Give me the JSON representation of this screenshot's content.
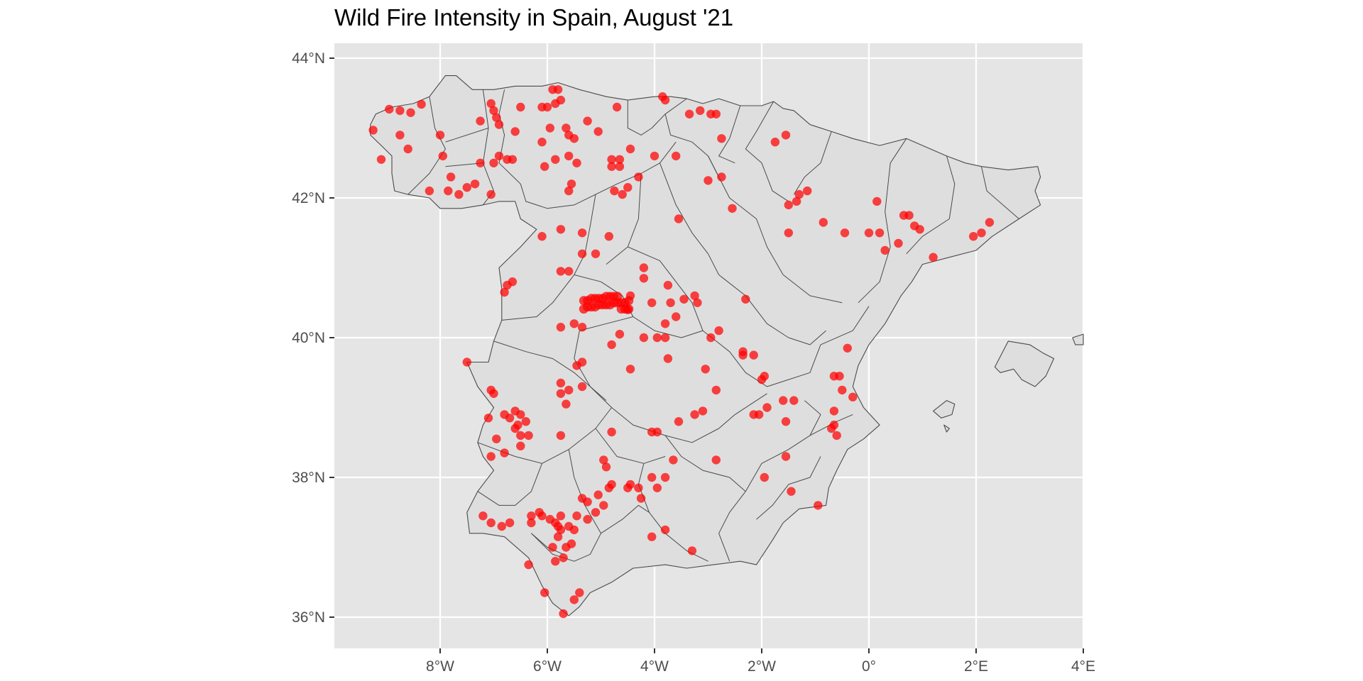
{
  "title": "Wild Fire Intensity in Spain, August '21",
  "map": {
    "x_ticks": [
      {
        "lon": -8,
        "label": "8°W"
      },
      {
        "lon": -6,
        "label": "6°W"
      },
      {
        "lon": -4,
        "label": "4°W"
      },
      {
        "lon": -2,
        "label": "2°W"
      },
      {
        "lon": 0,
        "label": "0°"
      },
      {
        "lon": 2,
        "label": "2°E"
      },
      {
        "lon": 4,
        "label": "4°E"
      }
    ],
    "y_ticks": [
      {
        "lat": 44,
        "label": "44°N"
      },
      {
        "lat": 42,
        "label": "42°N"
      },
      {
        "lat": 40,
        "label": "40°N"
      },
      {
        "lat": 38,
        "label": "38°N"
      },
      {
        "lat": 36,
        "label": "36°N"
      }
    ],
    "lon_range": [
      -10,
      4
    ],
    "lat_range": [
      35.6,
      44.25
    ],
    "panel_color": "#e5e5e5",
    "land_color": "#dedede",
    "border_color": "#4a4a4a",
    "point_color": "#ff0000",
    "fires": [
      [
        -9.25,
        42.97
      ],
      [
        -8.95,
        43.27
      ],
      [
        -8.75,
        43.25
      ],
      [
        -8.55,
        43.22
      ],
      [
        -8.35,
        43.34
      ],
      [
        -9.1,
        42.55
      ],
      [
        -8.75,
        42.9
      ],
      [
        -8.6,
        42.7
      ],
      [
        -8.0,
        42.9
      ],
      [
        -7.95,
        42.6
      ],
      [
        -8.2,
        42.1
      ],
      [
        -7.85,
        42.1
      ],
      [
        -7.65,
        42.05
      ],
      [
        -7.8,
        42.3
      ],
      [
        -7.5,
        42.15
      ],
      [
        -7.35,
        42.2
      ],
      [
        -7.25,
        42.5
      ],
      [
        -7.0,
        42.5
      ],
      [
        -6.9,
        42.6
      ],
      [
        -6.75,
        42.55
      ],
      [
        -6.65,
        42.55
      ],
      [
        -7.05,
        42.05
      ],
      [
        -7.25,
        43.1
      ],
      [
        -7.05,
        43.35
      ],
      [
        -7.0,
        43.25
      ],
      [
        -6.95,
        43.15
      ],
      [
        -6.9,
        43.05
      ],
      [
        -6.6,
        42.95
      ],
      [
        -6.5,
        43.3
      ],
      [
        -6.1,
        43.3
      ],
      [
        -6.0,
        43.3
      ],
      [
        -5.9,
        43.55
      ],
      [
        -5.8,
        43.55
      ],
      [
        -5.75,
        43.4
      ],
      [
        -5.85,
        43.35
      ],
      [
        -5.95,
        43.0
      ],
      [
        -5.65,
        43.0
      ],
      [
        -5.6,
        42.9
      ],
      [
        -5.5,
        42.85
      ],
      [
        -5.25,
        43.1
      ],
      [
        -5.05,
        42.95
      ],
      [
        -6.1,
        42.8
      ],
      [
        -6.05,
        42.45
      ],
      [
        -5.85,
        42.55
      ],
      [
        -5.6,
        42.6
      ],
      [
        -5.45,
        42.5
      ],
      [
        -5.55,
        42.2
      ],
      [
        -5.6,
        42.1
      ],
      [
        -4.8,
        42.55
      ],
      [
        -4.65,
        42.55
      ],
      [
        -4.8,
        42.45
      ],
      [
        -4.65,
        42.45
      ],
      [
        -4.6,
        42.05
      ],
      [
        -4.5,
        42.15
      ],
      [
        -4.45,
        42.7
      ],
      [
        -4.3,
        42.3
      ],
      [
        -4.75,
        42.1
      ],
      [
        -4.0,
        42.6
      ],
      [
        -3.85,
        43.45
      ],
      [
        -3.8,
        43.4
      ],
      [
        -3.6,
        42.6
      ],
      [
        -3.35,
        43.2
      ],
      [
        -3.15,
        43.25
      ],
      [
        -2.95,
        43.2
      ],
      [
        -2.85,
        43.2
      ],
      [
        -2.75,
        42.85
      ],
      [
        -3.0,
        42.25
      ],
      [
        -2.75,
        42.3
      ],
      [
        -4.7,
        43.3
      ],
      [
        -4.85,
        41.45
      ],
      [
        -3.55,
        41.7
      ],
      [
        -2.55,
        41.85
      ],
      [
        -1.75,
        42.8
      ],
      [
        -1.55,
        42.9
      ],
      [
        -1.5,
        41.9
      ],
      [
        -1.35,
        41.95
      ],
      [
        -1.3,
        42.05
      ],
      [
        -1.15,
        42.1
      ],
      [
        -1.5,
        41.5
      ],
      [
        -0.85,
        41.65
      ],
      [
        -0.45,
        41.5
      ],
      [
        0.15,
        41.95
      ],
      [
        0.0,
        41.5
      ],
      [
        0.2,
        41.5
      ],
      [
        0.3,
        41.25
      ],
      [
        0.55,
        41.35
      ],
      [
        0.65,
        41.75
      ],
      [
        0.75,
        41.75
      ],
      [
        0.85,
        41.6
      ],
      [
        0.95,
        41.55
      ],
      [
        1.2,
        41.15
      ],
      [
        1.95,
        41.45
      ],
      [
        2.1,
        41.5
      ],
      [
        2.25,
        41.65
      ],
      [
        -6.1,
        41.45
      ],
      [
        -5.75,
        41.55
      ],
      [
        -5.35,
        41.5
      ],
      [
        -5.35,
        41.2
      ],
      [
        -5.1,
        41.2
      ],
      [
        -6.65,
        40.8
      ],
      [
        -6.75,
        40.75
      ],
      [
        -6.8,
        40.65
      ],
      [
        -5.75,
        40.95
      ],
      [
        -5.6,
        40.95
      ],
      [
        -4.2,
        41.0
      ],
      [
        -4.2,
        40.85
      ],
      [
        -4.5,
        40.4
      ],
      [
        -4.45,
        40.6
      ],
      [
        -4.05,
        40.5
      ],
      [
        -3.75,
        40.75
      ],
      [
        -3.7,
        40.5
      ],
      [
        -3.6,
        40.3
      ],
      [
        -3.8,
        40.2
      ],
      [
        -3.45,
        40.55
      ],
      [
        -3.25,
        40.6
      ],
      [
        -3.2,
        40.5
      ],
      [
        -2.95,
        40.0
      ],
      [
        -2.8,
        40.1
      ],
      [
        -2.3,
        40.55
      ],
      [
        -5.75,
        40.15
      ],
      [
        -5.5,
        40.2
      ],
      [
        -5.35,
        40.15
      ],
      [
        -5.45,
        39.6
      ],
      [
        -5.35,
        39.65
      ],
      [
        -4.8,
        39.9
      ],
      [
        -4.65,
        40.05
      ],
      [
        -4.45,
        39.55
      ],
      [
        -4.2,
        40.0
      ],
      [
        -3.95,
        40.0
      ],
      [
        -3.8,
        40.0
      ],
      [
        -3.75,
        39.7
      ],
      [
        -3.05,
        39.55
      ],
      [
        -2.85,
        39.25
      ],
      [
        -2.35,
        39.8
      ],
      [
        -2.15,
        39.75
      ],
      [
        -2.0,
        39.4
      ],
      [
        -1.95,
        39.45
      ],
      [
        -1.6,
        39.1
      ],
      [
        -1.4,
        39.1
      ],
      [
        -0.65,
        39.45
      ],
      [
        -0.55,
        39.45
      ],
      [
        -0.4,
        39.85
      ],
      [
        -0.5,
        39.25
      ],
      [
        -0.3,
        39.15
      ],
      [
        -0.65,
        38.95
      ],
      [
        -0.65,
        38.75
      ],
      [
        -0.7,
        38.7
      ],
      [
        -0.6,
        38.6
      ],
      [
        -7.5,
        39.65
      ],
      [
        -7.05,
        39.25
      ],
      [
        -7.0,
        39.2
      ],
      [
        -6.8,
        38.9
      ],
      [
        -6.6,
        38.95
      ],
      [
        -6.5,
        38.9
      ],
      [
        -6.7,
        38.85
      ],
      [
        -6.55,
        38.75
      ],
      [
        -6.4,
        38.8
      ],
      [
        -6.6,
        38.7
      ],
      [
        -6.5,
        38.6
      ],
      [
        -6.35,
        38.6
      ],
      [
        -6.5,
        38.45
      ],
      [
        -7.1,
        38.85
      ],
      [
        -6.95,
        38.55
      ],
      [
        -7.05,
        38.3
      ],
      [
        -6.8,
        38.35
      ],
      [
        -5.75,
        39.35
      ],
      [
        -5.75,
        39.2
      ],
      [
        -5.6,
        39.25
      ],
      [
        -5.65,
        39.05
      ],
      [
        -5.75,
        38.6
      ],
      [
        -5.35,
        39.3
      ],
      [
        -4.8,
        38.65
      ],
      [
        -4.05,
        38.65
      ],
      [
        -3.95,
        38.65
      ],
      [
        -3.55,
        38.8
      ],
      [
        -3.25,
        38.9
      ],
      [
        -3.1,
        38.95
      ],
      [
        -2.15,
        38.9
      ],
      [
        -2.05,
        38.9
      ],
      [
        -1.9,
        39.0
      ],
      [
        -1.55,
        38.8
      ],
      [
        -1.55,
        38.3
      ],
      [
        -1.45,
        37.8
      ],
      [
        -1.95,
        38.0
      ],
      [
        -0.95,
        37.6
      ],
      [
        -2.85,
        38.25
      ],
      [
        -3.65,
        38.25
      ],
      [
        -3.8,
        38.0
      ],
      [
        -3.95,
        37.85
      ],
      [
        -4.05,
        38.0
      ],
      [
        -4.25,
        37.7
      ],
      [
        -4.3,
        37.85
      ],
      [
        -4.45,
        37.9
      ],
      [
        -4.5,
        37.85
      ],
      [
        -4.8,
        37.9
      ],
      [
        -4.85,
        37.85
      ],
      [
        -4.95,
        37.6
      ],
      [
        -5.05,
        37.75
      ],
      [
        -5.25,
        37.65
      ],
      [
        -5.1,
        37.5
      ],
      [
        -5.25,
        37.4
      ],
      [
        -5.35,
        37.7
      ],
      [
        -4.95,
        38.25
      ],
      [
        -4.9,
        38.15
      ],
      [
        -6.15,
        37.5
      ],
      [
        -6.1,
        37.45
      ],
      [
        -5.95,
        37.4
      ],
      [
        -5.85,
        37.35
      ],
      [
        -5.75,
        37.25
      ],
      [
        -5.75,
        37.45
      ],
      [
        -5.6,
        37.3
      ],
      [
        -5.5,
        37.25
      ],
      [
        -5.45,
        37.45
      ],
      [
        -5.55,
        37.05
      ],
      [
        -5.65,
        37.0
      ],
      [
        -5.8,
        37.15
      ],
      [
        -5.8,
        37.3
      ],
      [
        -5.9,
        37.0
      ],
      [
        -5.85,
        36.8
      ],
      [
        -5.7,
        36.85
      ],
      [
        -6.3,
        37.35
      ],
      [
        -6.3,
        37.45
      ],
      [
        -6.35,
        36.75
      ],
      [
        -6.05,
        36.35
      ],
      [
        -5.7,
        36.05
      ],
      [
        -5.5,
        36.25
      ],
      [
        -5.4,
        36.35
      ],
      [
        -7.05,
        37.35
      ],
      [
        -7.2,
        37.45
      ],
      [
        -6.85,
        37.3
      ],
      [
        -6.7,
        37.35
      ],
      [
        -4.05,
        37.15
      ],
      [
        -3.8,
        37.25
      ],
      [
        -3.3,
        36.95
      ],
      [
        -2.35,
        39.75
      ]
    ],
    "fire_cluster": [
      -4.9,
      40.5
    ]
  }
}
